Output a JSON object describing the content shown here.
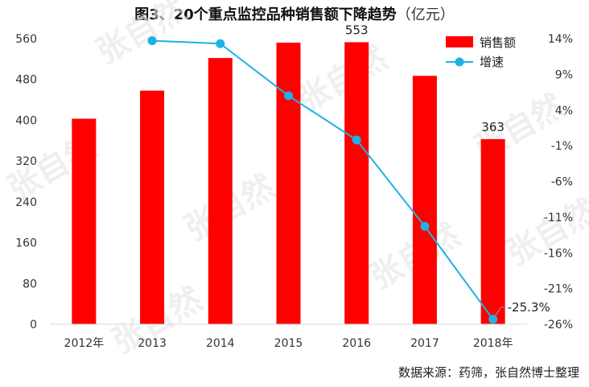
{
  "title": "图3、20个重点监控品种销售额下降趋势",
  "title_unit": "（亿元）",
  "source": "数据来源：药筛，张自然博士整理",
  "watermark": "张自然",
  "colors": {
    "bar": "#ff0000",
    "line": "#1fb1e6",
    "axis": "#d9d9d9"
  },
  "chart_data": {
    "type": "bar+line",
    "categories": [
      "2012年",
      "2013",
      "2014",
      "2015",
      "2016",
      "2017",
      "2018年"
    ],
    "series": [
      {
        "name": "销售额",
        "type": "bar",
        "axis": "left",
        "values": [
          403,
          458,
          522,
          552,
          553,
          487,
          363
        ]
      },
      {
        "name": "增速",
        "type": "line",
        "axis": "right",
        "values": [
          null,
          13.7,
          13.3,
          6.0,
          -0.2,
          -12.3,
          -25.3
        ]
      }
    ],
    "left_axis": {
      "min": 0,
      "max": 560,
      "ticks": [
        "0",
        "80",
        "160",
        "240",
        "320",
        "400",
        "480",
        "560"
      ]
    },
    "right_axis": {
      "min": -26,
      "max": 14,
      "ticks": [
        "14%",
        "9%",
        "4%",
        "-1%",
        "-6%",
        "-11%",
        "-16%",
        "-21%",
        "-26%"
      ]
    },
    "data_labels": [
      {
        "series": 0,
        "index": 4,
        "text": "553"
      },
      {
        "series": 0,
        "index": 6,
        "text": "363"
      },
      {
        "series": 1,
        "index": 6,
        "text": "-25.3%"
      }
    ],
    "legend": {
      "position": "top-right",
      "items": [
        "销售额",
        "增速"
      ]
    },
    "grid": false
  }
}
